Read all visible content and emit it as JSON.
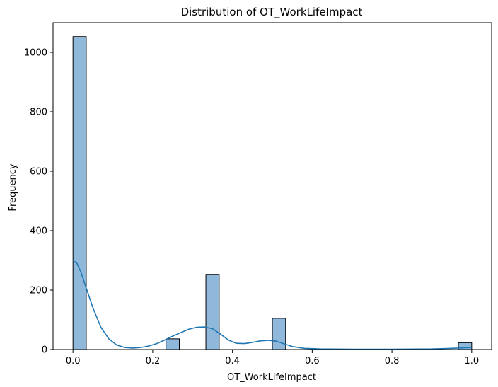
{
  "chart_data": {
    "type": "bar",
    "title": "Distribution of OT_WorkLifeImpact",
    "xlabel": "OT_WorkLifeImpact",
    "ylabel": "Frequency",
    "xlim": [
      -0.05,
      1.05
    ],
    "ylim": [
      0,
      1100
    ],
    "x_ticks": [
      0.0,
      0.2,
      0.4,
      0.6,
      0.8,
      1.0
    ],
    "x_tick_labels": [
      "0.0",
      "0.2",
      "0.4",
      "0.6",
      "0.8",
      "1.0"
    ],
    "y_ticks": [
      0,
      200,
      400,
      600,
      800,
      1000
    ],
    "y_tick_labels": [
      "0",
      "200",
      "400",
      "600",
      "800",
      "1000"
    ],
    "grid": false,
    "bin_width": 0.0333,
    "bins": [
      {
        "x0": 0.0,
        "x1": 0.0333,
        "count": 1053
      },
      {
        "x0": 0.2333,
        "x1": 0.2667,
        "count": 36
      },
      {
        "x0": 0.3333,
        "x1": 0.3667,
        "count": 253
      },
      {
        "x0": 0.5,
        "x1": 0.5333,
        "count": 105
      },
      {
        "x0": 0.9667,
        "x1": 1.0,
        "count": 23
      }
    ],
    "kde": {
      "x": [
        0.0,
        0.01,
        0.02,
        0.03,
        0.05,
        0.07,
        0.09,
        0.11,
        0.13,
        0.15,
        0.17,
        0.19,
        0.21,
        0.23,
        0.25,
        0.27,
        0.29,
        0.31,
        0.33,
        0.35,
        0.37,
        0.39,
        0.41,
        0.43,
        0.45,
        0.47,
        0.49,
        0.51,
        0.53,
        0.55,
        0.58,
        0.62,
        0.7,
        0.8,
        0.9,
        0.95,
        1.0
      ],
      "y": [
        300,
        290,
        260,
        220,
        140,
        75,
        36,
        15,
        7,
        5,
        7,
        12,
        20,
        32,
        45,
        57,
        68,
        75,
        76,
        70,
        52,
        32,
        21,
        20,
        24,
        29,
        31,
        28,
        19,
        10,
        4,
        2,
        1,
        1,
        2,
        4,
        7
      ]
    },
    "colors": {
      "bar_fill": "#8fb8da",
      "bar_edge": "#000000",
      "kde_line": "#1f77b4"
    }
  }
}
